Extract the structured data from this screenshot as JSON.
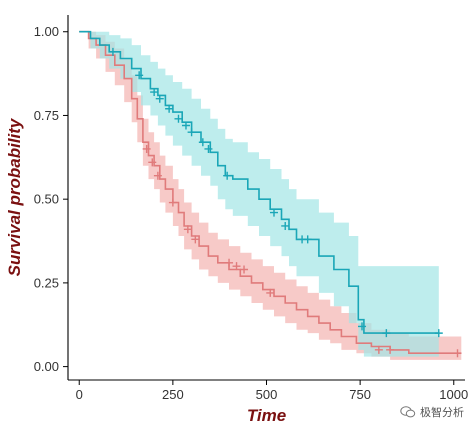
{
  "chart_data": {
    "type": "line",
    "subtype": "kaplan-meier",
    "xlabel": "Time",
    "ylabel": "Survival probability",
    "xlim": [
      -30,
      1030
    ],
    "ylim": [
      -0.04,
      1.05
    ],
    "xticks": [
      0,
      250,
      500,
      750,
      1000
    ],
    "yticks": [
      0.0,
      0.25,
      0.5,
      0.75,
      1.0
    ],
    "xtick_labels": [
      "0",
      "250",
      "500",
      "750",
      "1000"
    ],
    "ytick_labels": [
      "0.00",
      "0.25",
      "0.50",
      "0.75",
      "1.00"
    ],
    "grid": false,
    "legend": false,
    "series": [
      {
        "color": "#e07b7b",
        "band_color": "#f4b3b0",
        "steps": [
          [
            0,
            1.0
          ],
          [
            25,
            0.98
          ],
          [
            45,
            0.96
          ],
          [
            70,
            0.93
          ],
          [
            95,
            0.9
          ],
          [
            120,
            0.86
          ],
          [
            140,
            0.8
          ],
          [
            155,
            0.74
          ],
          [
            170,
            0.67
          ],
          [
            185,
            0.63
          ],
          [
            200,
            0.6
          ],
          [
            215,
            0.56
          ],
          [
            230,
            0.53
          ],
          [
            250,
            0.49
          ],
          [
            265,
            0.46
          ],
          [
            280,
            0.42
          ],
          [
            300,
            0.39
          ],
          [
            320,
            0.36
          ],
          [
            345,
            0.33
          ],
          [
            370,
            0.31
          ],
          [
            400,
            0.29
          ],
          [
            430,
            0.27
          ],
          [
            460,
            0.25
          ],
          [
            490,
            0.23
          ],
          [
            520,
            0.21
          ],
          [
            550,
            0.19
          ],
          [
            580,
            0.17
          ],
          [
            610,
            0.15
          ],
          [
            640,
            0.13
          ],
          [
            670,
            0.11
          ],
          [
            700,
            0.09
          ],
          [
            740,
            0.07
          ],
          [
            780,
            0.06
          ],
          [
            830,
            0.05
          ],
          [
            880,
            0.04
          ],
          [
            1020,
            0.04
          ]
        ],
        "lower": [
          [
            0,
            1.0
          ],
          [
            25,
            0.95
          ],
          [
            45,
            0.92
          ],
          [
            70,
            0.88
          ],
          [
            95,
            0.84
          ],
          [
            120,
            0.79
          ],
          [
            140,
            0.73
          ],
          [
            155,
            0.67
          ],
          [
            170,
            0.6
          ],
          [
            185,
            0.56
          ],
          [
            200,
            0.53
          ],
          [
            215,
            0.49
          ],
          [
            230,
            0.46
          ],
          [
            250,
            0.42
          ],
          [
            265,
            0.39
          ],
          [
            280,
            0.35
          ],
          [
            300,
            0.32
          ],
          [
            320,
            0.29
          ],
          [
            345,
            0.27
          ],
          [
            370,
            0.25
          ],
          [
            400,
            0.23
          ],
          [
            430,
            0.21
          ],
          [
            460,
            0.19
          ],
          [
            490,
            0.17
          ],
          [
            520,
            0.15
          ],
          [
            550,
            0.13
          ],
          [
            580,
            0.11
          ],
          [
            610,
            0.1
          ],
          [
            640,
            0.08
          ],
          [
            670,
            0.07
          ],
          [
            700,
            0.05
          ],
          [
            740,
            0.04
          ],
          [
            780,
            0.03
          ],
          [
            830,
            0.02
          ],
          [
            880,
            0.02
          ],
          [
            1020,
            0.02
          ]
        ],
        "upper": [
          [
            0,
            1.0
          ],
          [
            25,
            1.0
          ],
          [
            45,
            0.99
          ],
          [
            70,
            0.97
          ],
          [
            95,
            0.95
          ],
          [
            120,
            0.92
          ],
          [
            140,
            0.87
          ],
          [
            155,
            0.81
          ],
          [
            170,
            0.74
          ],
          [
            185,
            0.7
          ],
          [
            200,
            0.67
          ],
          [
            215,
            0.63
          ],
          [
            230,
            0.6
          ],
          [
            250,
            0.56
          ],
          [
            265,
            0.53
          ],
          [
            280,
            0.49
          ],
          [
            300,
            0.46
          ],
          [
            320,
            0.43
          ],
          [
            345,
            0.4
          ],
          [
            370,
            0.38
          ],
          [
            400,
            0.36
          ],
          [
            430,
            0.34
          ],
          [
            460,
            0.32
          ],
          [
            490,
            0.3
          ],
          [
            520,
            0.28
          ],
          [
            550,
            0.26
          ],
          [
            580,
            0.24
          ],
          [
            610,
            0.22
          ],
          [
            640,
            0.2
          ],
          [
            670,
            0.18
          ],
          [
            700,
            0.16
          ],
          [
            740,
            0.13
          ],
          [
            780,
            0.11
          ],
          [
            830,
            0.1
          ],
          [
            880,
            0.09
          ],
          [
            1020,
            0.09
          ]
        ],
        "censored": [
          [
            180,
            0.65
          ],
          [
            195,
            0.61
          ],
          [
            210,
            0.57
          ],
          [
            250,
            0.49
          ],
          [
            290,
            0.41
          ],
          [
            310,
            0.38
          ],
          [
            400,
            0.31
          ],
          [
            420,
            0.3
          ],
          [
            440,
            0.29
          ],
          [
            510,
            0.22
          ],
          [
            800,
            0.05
          ],
          [
            830,
            0.05
          ],
          [
            1010,
            0.04
          ]
        ]
      },
      {
        "color": "#1aa6b7",
        "band_color": "#a3e6e6",
        "steps": [
          [
            0,
            1.0
          ],
          [
            30,
            0.98
          ],
          [
            55,
            0.96
          ],
          [
            80,
            0.94
          ],
          [
            110,
            0.92
          ],
          [
            140,
            0.89
          ],
          [
            165,
            0.86
          ],
          [
            190,
            0.83
          ],
          [
            210,
            0.81
          ],
          [
            230,
            0.78
          ],
          [
            250,
            0.76
          ],
          [
            275,
            0.73
          ],
          [
            300,
            0.7
          ],
          [
            325,
            0.67
          ],
          [
            350,
            0.64
          ],
          [
            370,
            0.6
          ],
          [
            390,
            0.57
          ],
          [
            410,
            0.56
          ],
          [
            450,
            0.53
          ],
          [
            480,
            0.5
          ],
          [
            510,
            0.47
          ],
          [
            540,
            0.44
          ],
          [
            560,
            0.41
          ],
          [
            580,
            0.38
          ],
          [
            640,
            0.33
          ],
          [
            680,
            0.29
          ],
          [
            720,
            0.24
          ],
          [
            745,
            0.14
          ],
          [
            760,
            0.1
          ],
          [
            960,
            0.1
          ]
        ],
        "lower": [
          [
            0,
            1.0
          ],
          [
            30,
            0.95
          ],
          [
            55,
            0.92
          ],
          [
            80,
            0.89
          ],
          [
            110,
            0.86
          ],
          [
            140,
            0.82
          ],
          [
            165,
            0.78
          ],
          [
            190,
            0.75
          ],
          [
            210,
            0.72
          ],
          [
            230,
            0.69
          ],
          [
            250,
            0.66
          ],
          [
            275,
            0.63
          ],
          [
            300,
            0.6
          ],
          [
            325,
            0.57
          ],
          [
            350,
            0.54
          ],
          [
            370,
            0.5
          ],
          [
            390,
            0.47
          ],
          [
            410,
            0.45
          ],
          [
            450,
            0.42
          ],
          [
            480,
            0.39
          ],
          [
            510,
            0.36
          ],
          [
            540,
            0.33
          ],
          [
            560,
            0.3
          ],
          [
            580,
            0.27
          ],
          [
            640,
            0.22
          ],
          [
            680,
            0.18
          ],
          [
            720,
            0.13
          ],
          [
            745,
            0.05
          ],
          [
            760,
            0.03
          ],
          [
            960,
            0.03
          ]
        ],
        "upper": [
          [
            0,
            1.0
          ],
          [
            30,
            1.0
          ],
          [
            55,
            1.0
          ],
          [
            80,
            0.99
          ],
          [
            110,
            0.98
          ],
          [
            140,
            0.96
          ],
          [
            165,
            0.93
          ],
          [
            190,
            0.91
          ],
          [
            210,
            0.89
          ],
          [
            230,
            0.87
          ],
          [
            250,
            0.85
          ],
          [
            275,
            0.83
          ],
          [
            300,
            0.8
          ],
          [
            325,
            0.77
          ],
          [
            350,
            0.74
          ],
          [
            370,
            0.71
          ],
          [
            390,
            0.68
          ],
          [
            410,
            0.67
          ],
          [
            450,
            0.64
          ],
          [
            480,
            0.62
          ],
          [
            510,
            0.59
          ],
          [
            540,
            0.56
          ],
          [
            560,
            0.53
          ],
          [
            580,
            0.5
          ],
          [
            640,
            0.46
          ],
          [
            680,
            0.43
          ],
          [
            720,
            0.39
          ],
          [
            745,
            0.3
          ],
          [
            760,
            0.3
          ],
          [
            960,
            0.3
          ]
        ],
        "censored": [
          [
            90,
            0.94
          ],
          [
            160,
            0.87
          ],
          [
            200,
            0.82
          ],
          [
            215,
            0.8
          ],
          [
            240,
            0.77
          ],
          [
            265,
            0.74
          ],
          [
            285,
            0.72
          ],
          [
            300,
            0.7
          ],
          [
            330,
            0.67
          ],
          [
            345,
            0.65
          ],
          [
            395,
            0.57
          ],
          [
            520,
            0.46
          ],
          [
            550,
            0.42
          ],
          [
            595,
            0.38
          ],
          [
            610,
            0.38
          ],
          [
            755,
            0.12
          ],
          [
            820,
            0.1
          ],
          [
            960,
            0.1
          ]
        ]
      }
    ]
  },
  "watermark": {
    "icon": "wechat-icon",
    "text": "极智分析"
  }
}
